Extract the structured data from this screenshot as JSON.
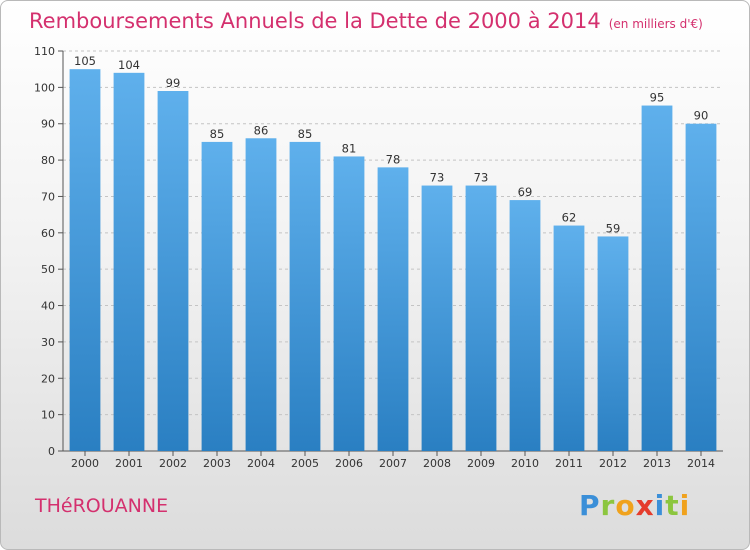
{
  "header": {
    "title": "Remboursements Annuels de la Dette de 2000 à 2014",
    "unit": "(en milliers d'€)"
  },
  "commune": "THéROUANNE",
  "logo": [
    "P",
    "r",
    "o",
    "x",
    "i",
    "t",
    "i"
  ],
  "colors": {
    "title": "#d4306e",
    "bar_top": "#5fb0ec",
    "bar_bottom": "#2a7fc2"
  },
  "chart_data": {
    "type": "bar",
    "categories": [
      "2000",
      "2001",
      "2002",
      "2003",
      "2004",
      "2005",
      "2006",
      "2007",
      "2008",
      "2009",
      "2010",
      "2011",
      "2012",
      "2013",
      "2014"
    ],
    "values": [
      105,
      104,
      99,
      85,
      86,
      85,
      81,
      78,
      73,
      73,
      69,
      62,
      59,
      95,
      90
    ],
    "ylim": [
      0,
      110
    ],
    "yticks": [
      0,
      10,
      20,
      30,
      40,
      50,
      60,
      70,
      80,
      90,
      100,
      110
    ],
    "grid": true
  }
}
